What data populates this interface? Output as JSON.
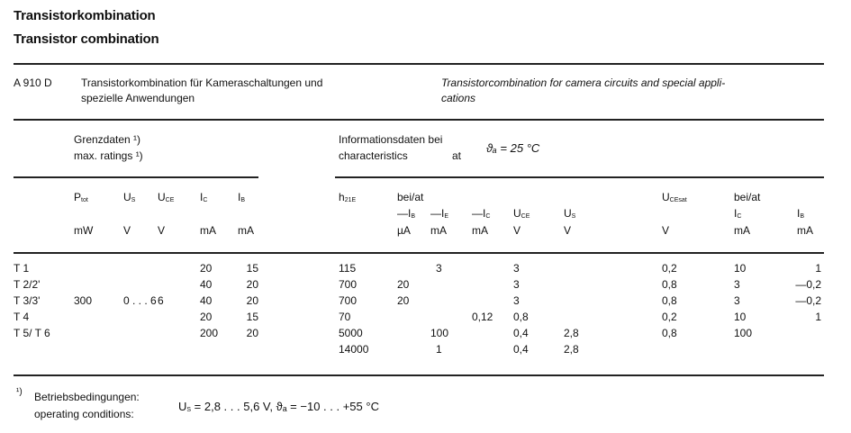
{
  "title_de": "Transistorkombination",
  "title_en": "Transistor combination",
  "product": {
    "type": "A 910 D",
    "desc_de_1": "Transistorkombination  für  Kameraschaltungen  und",
    "desc_de_2": "spezielle  Anwendungen",
    "desc_en_1": "Transistorcombination  for  camera  circuits  and  special  appli-",
    "desc_en_2": "cations"
  },
  "groups": {
    "limits_de": "Grenzdaten ¹)",
    "limits_en": "max. ratings ¹)",
    "info_de": "Informationsdaten bei",
    "info_en": "characteristics",
    "info_at": "at",
    "condition": "ϑₐ = 25 °C"
  },
  "headers": [
    {
      "main": "P",
      "sub": "tot",
      "unit": "mW"
    },
    {
      "main": "U",
      "sub": "S",
      "unit": "V"
    },
    {
      "main": "U",
      "sub": "CE",
      "unit": "V"
    },
    {
      "main": "I",
      "sub": "C",
      "unit": "mA"
    },
    {
      "main": "I",
      "sub": "B",
      "unit": "mA"
    },
    {
      "main": "h",
      "sub": "21E",
      "unit": ""
    },
    {
      "main": "—I",
      "sub": "B",
      "unit": "µA",
      "top": "bei/at"
    },
    {
      "main": "—I",
      "sub": "E",
      "unit": "mA"
    },
    {
      "main": "—I",
      "sub": "C",
      "unit": "mA"
    },
    {
      "main": "U",
      "sub": "CE",
      "unit": "V"
    },
    {
      "main": "U",
      "sub": "S",
      "unit": "V"
    },
    {
      "main": "U",
      "sub": "CEsat",
      "unit": "V"
    },
    {
      "main": "I",
      "sub": "C",
      "unit": "mA",
      "top": "bei/at"
    },
    {
      "main": "I",
      "sub": "B",
      "unit": "mA"
    }
  ],
  "rows": [
    {
      "label": "T 1",
      "cells": [
        "",
        "",
        "",
        "20",
        "15",
        "115",
        "",
        "3",
        "",
        "3",
        "",
        "0,2",
        "10",
        "1"
      ]
    },
    {
      "label": "T 2/2'",
      "cells": [
        "",
        "",
        "",
        "40",
        "20",
        "700",
        "20",
        "",
        "",
        "3",
        "",
        "0,8",
        "3",
        "—0,2"
      ]
    },
    {
      "label": "T 3/3'",
      "cells": [
        "300",
        "0 . . . 6",
        "6",
        "40",
        "20",
        "700",
        "20",
        "",
        "",
        "3",
        "",
        "0,8",
        "3",
        "—0,2"
      ]
    },
    {
      "label": "T 4",
      "cells": [
        "",
        "",
        "",
        "20",
        "15",
        "70",
        "",
        "",
        "0,12",
        "0,8",
        "",
        "0,2",
        "10",
        "1"
      ]
    },
    {
      "label": "T 5/ T 6",
      "cells": [
        "",
        "",
        "",
        "200",
        "20",
        "5000",
        "",
        "100",
        "",
        "0,4",
        "2,8",
        "0,8",
        "100",
        ""
      ]
    },
    {
      "label": "",
      "cells": [
        "",
        "",
        "",
        "",
        "",
        "14000",
        "",
        "1",
        "",
        "0,4",
        "2,8",
        "",
        "",
        ""
      ]
    }
  ],
  "footnote": {
    "mark": "¹)",
    "de": "Betriebsbedingungen:",
    "en": "operating conditions:",
    "formula": "U",
    "formula_sub": "S",
    "formula_rest": " = 2,8 . . . 5,6 V,  ϑₐ = −10 . . . +55 °C"
  }
}
